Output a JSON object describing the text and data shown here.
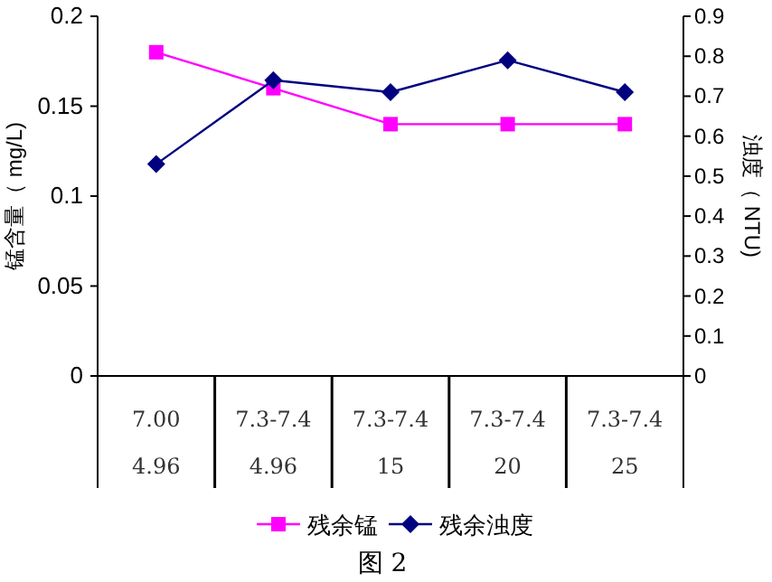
{
  "chart_data": {
    "type": "line",
    "title": "图 2",
    "ylabel": "锰含量（ mg/L)",
    "y2label": "浊度（ NTU)",
    "categories": [
      "7.00\n4.96",
      "7.3-7.4\n4.96",
      "7.3-7.4\n15",
      "7.3-7.4\n20",
      "7.3-7.4\n25"
    ],
    "series": [
      {
        "name": "残余锰",
        "color": "#ff00ff",
        "marker": "square",
        "values": [
          0.18,
          0.16,
          0.14,
          0.14,
          0.14
        ]
      },
      {
        "name": "残余浊度",
        "color": "#000080",
        "marker": "diamond",
        "axis": "y2",
        "values": [
          0.53,
          0.74,
          0.71,
          0.79,
          0.71
        ]
      }
    ],
    "ylim": [
      0,
      0.2
    ],
    "yticks": [
      0,
      0.05,
      0.1,
      0.15,
      0.2
    ],
    "y2lim": [
      0,
      0.9
    ],
    "y2ticks": [
      0,
      0.1,
      0.2,
      0.3,
      0.4,
      0.5,
      0.6,
      0.7,
      0.8,
      0.9
    ],
    "legend": "bottom",
    "grid": false
  }
}
